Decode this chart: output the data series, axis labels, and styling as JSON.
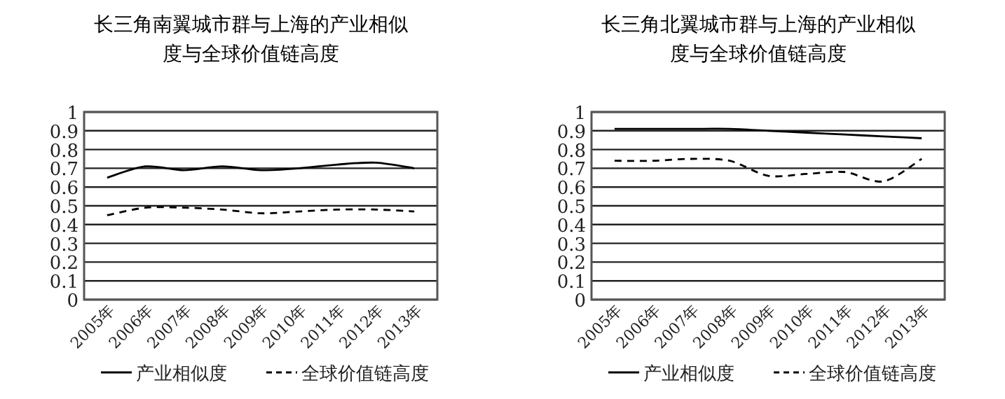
{
  "chart_data": [
    {
      "type": "line",
      "title": "长三角南翼城市群与上海的产业相似度与全球价值链高度",
      "categories": [
        "2005年",
        "2006年",
        "2007年",
        "2008年",
        "2009年",
        "2010年",
        "2011年",
        "2012年",
        "2013年"
      ],
      "series": [
        {
          "name": "产业相似度",
          "color": "#000000",
          "line_style": "solid",
          "values": [
            0.65,
            0.71,
            0.69,
            0.71,
            0.69,
            0.7,
            0.72,
            0.73,
            0.7
          ]
        },
        {
          "name": "全球价值链高度",
          "color": "#000000",
          "line_style": "dashed",
          "values": [
            0.45,
            0.49,
            0.49,
            0.48,
            0.46,
            0.47,
            0.48,
            0.48,
            0.47
          ]
        }
      ],
      "ylim": [
        0,
        1
      ],
      "yticks": [
        0,
        0.1,
        0.2,
        0.3,
        0.4,
        0.5,
        0.6,
        0.7,
        0.8,
        0.9,
        1
      ],
      "grid": "y",
      "legend": "bottom",
      "marker": "none"
    },
    {
      "type": "line",
      "title": "长三角北翼城市群与上海的产业相似度与全球价值链高度",
      "categories": [
        "2005年",
        "2006年",
        "2007年",
        "2008年",
        "2009年",
        "2010年",
        "2011年",
        "2012年",
        "2013年"
      ],
      "series": [
        {
          "name": "产业相似度",
          "color": "#000000",
          "line_style": "solid",
          "values": [
            0.91,
            0.91,
            0.91,
            0.91,
            0.9,
            0.89,
            0.88,
            0.87,
            0.86
          ]
        },
        {
          "name": "全球价值链高度",
          "color": "#000000",
          "line_style": "dashed",
          "values": [
            0.74,
            0.74,
            0.75,
            0.74,
            0.66,
            0.67,
            0.68,
            0.63,
            0.75
          ]
        }
      ],
      "ylim": [
        0,
        1
      ],
      "yticks": [
        0,
        0.1,
        0.2,
        0.3,
        0.4,
        0.5,
        0.6,
        0.7,
        0.8,
        0.9,
        1
      ],
      "grid": "y",
      "legend": "bottom",
      "marker": "none"
    }
  ]
}
